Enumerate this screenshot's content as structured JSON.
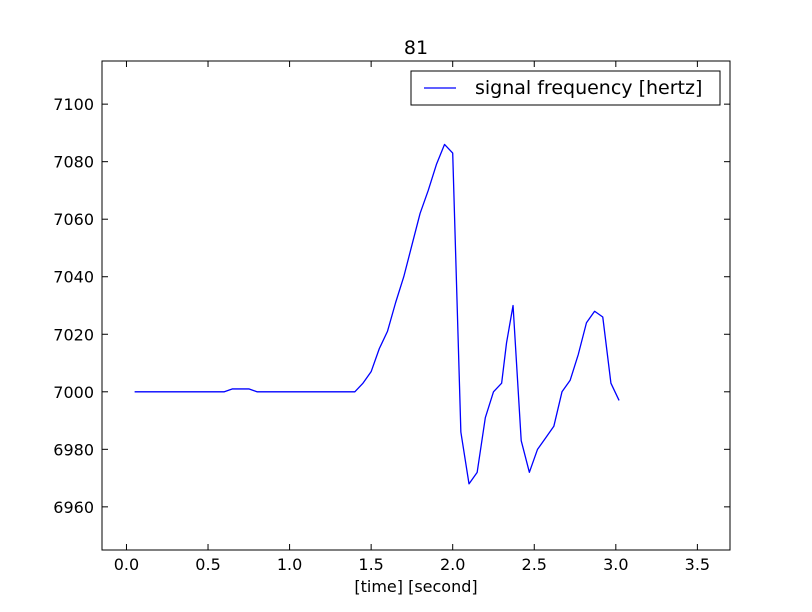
{
  "chart_data": {
    "type": "line",
    "title": "81",
    "xlabel": "[time] [second]",
    "ylabel": "",
    "xlim": [
      -0.15,
      3.7
    ],
    "ylim": [
      6945,
      7115
    ],
    "xticks": [
      0.0,
      0.5,
      1.0,
      1.5,
      2.0,
      2.5,
      3.0,
      3.5
    ],
    "xtick_labels": [
      "0.0",
      "0.5",
      "1.0",
      "1.5",
      "2.0",
      "2.5",
      "3.0",
      "3.5"
    ],
    "yticks": [
      6960,
      6980,
      7000,
      7020,
      7040,
      7060,
      7080,
      7100
    ],
    "ytick_labels": [
      "6960",
      "6980",
      "7000",
      "7020",
      "7040",
      "7060",
      "7080",
      "7100"
    ],
    "grid": false,
    "legend_position": "top-right",
    "series": [
      {
        "name": "signal frequency [hertz]",
        "color": "#0000ff",
        "x": [
          0.05,
          0.1,
          0.2,
          0.3,
          0.4,
          0.5,
          0.6,
          0.65,
          0.7,
          0.75,
          0.8,
          0.9,
          1.0,
          1.1,
          1.2,
          1.3,
          1.4,
          1.45,
          1.5,
          1.55,
          1.6,
          1.65,
          1.7,
          1.75,
          1.8,
          1.85,
          1.9,
          1.95,
          2.0,
          2.05,
          2.1,
          2.15,
          2.2,
          2.25,
          2.3,
          2.33,
          2.37,
          2.42,
          2.47,
          2.52,
          2.57,
          2.62,
          2.67,
          2.72,
          2.77,
          2.82,
          2.87,
          2.92,
          2.97,
          3.02
        ],
        "y": [
          7000,
          7000,
          7000,
          7000,
          7000,
          7000,
          7000,
          7001,
          7001,
          7001,
          7000,
          7000,
          7000,
          7000,
          7000,
          7000,
          7000,
          7003,
          7007,
          7015,
          7021,
          7031,
          7040,
          7051,
          7062,
          7070,
          7079,
          7086,
          7083,
          6986,
          6968,
          6972,
          6991,
          7000,
          7003,
          7017,
          7030,
          6983,
          6972,
          6980,
          6984,
          6988,
          7000,
          7004,
          7013,
          7024,
          7028,
          7026,
          7003,
          6997
        ]
      }
    ]
  }
}
